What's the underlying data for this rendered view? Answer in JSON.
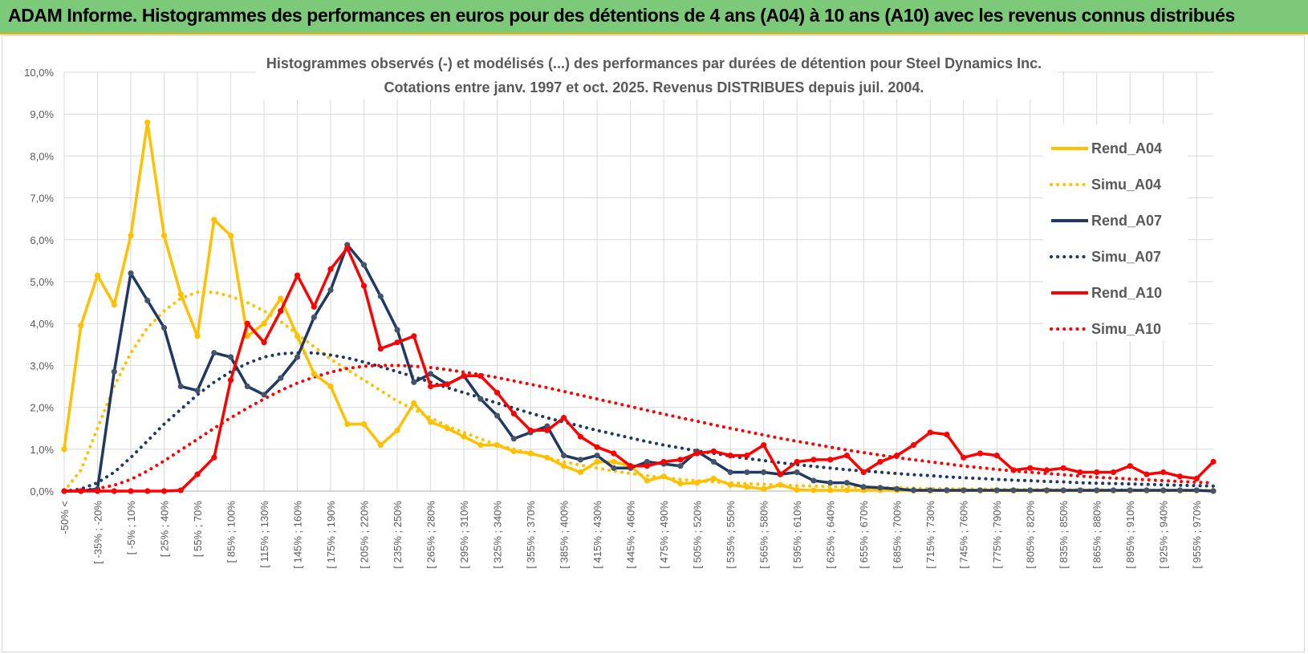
{
  "banner": {
    "title": "ADAM Informe. Histogrammes des performances en euros pour des détentions de 4 ans (A04) à 10 ans (A10) avec les revenus connus distribués"
  },
  "chart_data": {
    "type": "line",
    "title": "Histogrammes observés (-) et modélisés (...) des performances par durées de détention pour Steel Dynamics Inc.",
    "subtitle": "Cotations entre janv. 1997 et oct. 2025.  Revenus DISTRIBUES depuis juil. 2004.",
    "xlabel": "",
    "ylabel": "",
    "ylim": [
      0,
      10
    ],
    "y_ticks": [
      "0,0%",
      "1,0%",
      "2,0%",
      "3,0%",
      "4,0%",
      "5,0%",
      "6,0%",
      "7,0%",
      "8,0%",
      "9,0%",
      "10,0%"
    ],
    "x_tick_labels": [
      "-50% <",
      "[ -35% ; -20%",
      "[ -5% ; 10%",
      "[ 25% ; 40%",
      "[ 55% ; 70%",
      "[ 85% ; 100%",
      "[ 115% ; 130%",
      "[ 145% ; 160%",
      "[ 175% ; 190%",
      "[ 205% ; 220%",
      "[ 235% ; 250%",
      "[ 265% ; 280%",
      "[ 295% ; 310%",
      "[ 325% ; 340%",
      "[ 355% ; 370%",
      "[ 385% ; 400%",
      "[ 415% ; 430%",
      "[ 445% ; 460%",
      "[ 475% ; 490%",
      "[ 505% ; 520%",
      "[ 535% ; 550%",
      "[ 565% ; 580%",
      "[ 595% ; 610%",
      "[ 625% ; 640%",
      "[ 655% ; 670%",
      "[ 685% ; 700%",
      "[ 715% ; 730%",
      "[ 745% ; 760%",
      "[ 775% ; 790%",
      "[ 805% ; 820%",
      "[ 835% ; 850%",
      "[ 865% ; 880%",
      "[ 895% ; 910%",
      "[ 925% ; 940%",
      "[ 955% ; 970%"
    ],
    "legend_position": "right",
    "series": [
      {
        "name": "Rend_A04",
        "style": "solid",
        "color": "#ffc000",
        "values": [
          1.0,
          3.95,
          5.15,
          4.45,
          6.1,
          8.8,
          6.1,
          4.7,
          3.7,
          6.48,
          6.1,
          3.7,
          4.0,
          4.6,
          3.7,
          2.8,
          2.5,
          1.6,
          1.6,
          1.1,
          1.45,
          2.1,
          1.65,
          1.5,
          1.3,
          1.1,
          1.1,
          0.95,
          0.9,
          0.8,
          0.6,
          0.45,
          0.7,
          0.7,
          0.6,
          0.25,
          0.35,
          0.18,
          0.2,
          0.3,
          0.15,
          0.1,
          0.05,
          0.15,
          0.03,
          0.02,
          0.02,
          0.02,
          0.02,
          0.02,
          0.02,
          0.01,
          0.01,
          0.01,
          0.01,
          0.01,
          0.01,
          0.01,
          0.01,
          0.01,
          0.01,
          0.01,
          0.01,
          0.01,
          0.01,
          0.01,
          0.01,
          0.01,
          0.01,
          0.01
        ]
      },
      {
        "name": "Simu_A04",
        "style": "dotted",
        "color": "#ffc000",
        "values": [
          0.0,
          0.5,
          1.5,
          2.5,
          3.3,
          3.9,
          4.3,
          4.6,
          4.75,
          4.75,
          4.65,
          4.5,
          4.3,
          4.05,
          3.75,
          3.45,
          3.15,
          2.9,
          2.65,
          2.4,
          2.15,
          1.95,
          1.75,
          1.55,
          1.4,
          1.25,
          1.1,
          1.0,
          0.9,
          0.8,
          0.7,
          0.62,
          0.55,
          0.48,
          0.42,
          0.37,
          0.32,
          0.28,
          0.25,
          0.22,
          0.2,
          0.18,
          0.16,
          0.14,
          0.13,
          0.12,
          0.11,
          0.1,
          0.09,
          0.08,
          0.08,
          0.07,
          0.06,
          0.06,
          0.05,
          0.05,
          0.05,
          0.04,
          0.04,
          0.04,
          0.03,
          0.03,
          0.03,
          0.03,
          0.03,
          0.02,
          0.02,
          0.02,
          0.02,
          0.02
        ]
      },
      {
        "name": "Rend_A07",
        "style": "solid",
        "color": "#1f3864",
        "values": [
          0.0,
          0.0,
          0.05,
          2.85,
          5.2,
          4.55,
          3.9,
          2.5,
          2.4,
          3.3,
          3.2,
          2.5,
          2.3,
          2.7,
          3.2,
          4.15,
          4.8,
          5.88,
          5.4,
          4.65,
          3.85,
          2.6,
          2.8,
          2.55,
          2.75,
          2.2,
          1.8,
          1.25,
          1.4,
          1.55,
          0.85,
          0.75,
          0.85,
          0.55,
          0.55,
          0.7,
          0.65,
          0.6,
          0.95,
          0.7,
          0.45,
          0.45,
          0.45,
          0.4,
          0.45,
          0.25,
          0.2,
          0.2,
          0.1,
          0.08,
          0.05,
          0.02,
          0.02,
          0.02,
          0.02,
          0.02,
          0.02,
          0.02,
          0.02,
          0.02,
          0.02,
          0.02,
          0.02,
          0.02,
          0.02,
          0.02,
          0.02,
          0.02,
          0.02,
          0.0
        ]
      },
      {
        "name": "Simu_A07",
        "style": "dotted",
        "color": "#1f3864",
        "values": [
          0.0,
          0.05,
          0.2,
          0.45,
          0.8,
          1.2,
          1.6,
          1.95,
          2.3,
          2.6,
          2.85,
          3.05,
          3.2,
          3.28,
          3.3,
          3.3,
          3.25,
          3.18,
          3.08,
          2.97,
          2.85,
          2.73,
          2.6,
          2.47,
          2.35,
          2.23,
          2.1,
          1.98,
          1.86,
          1.75,
          1.65,
          1.55,
          1.45,
          1.36,
          1.27,
          1.18,
          1.1,
          1.03,
          0.96,
          0.9,
          0.84,
          0.78,
          0.73,
          0.68,
          0.63,
          0.59,
          0.55,
          0.51,
          0.48,
          0.45,
          0.42,
          0.39,
          0.37,
          0.34,
          0.32,
          0.3,
          0.28,
          0.26,
          0.25,
          0.23,
          0.22,
          0.2,
          0.19,
          0.18,
          0.17,
          0.16,
          0.15,
          0.14,
          0.13,
          0.12
        ]
      },
      {
        "name": "Rend_A10",
        "style": "solid",
        "color": "#ff0000",
        "values": [
          0.0,
          0.0,
          0.0,
          0.0,
          0.0,
          0.0,
          0.0,
          0.02,
          0.4,
          0.8,
          2.65,
          4.0,
          3.55,
          4.3,
          5.15,
          4.4,
          5.3,
          5.8,
          4.9,
          3.4,
          3.55,
          3.7,
          2.5,
          2.55,
          2.75,
          2.75,
          2.35,
          1.85,
          1.45,
          1.45,
          1.75,
          1.3,
          1.05,
          0.9,
          0.6,
          0.6,
          0.7,
          0.75,
          0.9,
          0.95,
          0.85,
          0.85,
          1.1,
          0.4,
          0.7,
          0.75,
          0.75,
          0.85,
          0.45,
          0.7,
          0.85,
          1.1,
          1.4,
          1.35,
          0.8,
          0.9,
          0.85,
          0.5,
          0.55,
          0.5,
          0.55,
          0.45,
          0.45,
          0.45,
          0.6,
          0.4,
          0.45,
          0.35,
          0.3,
          0.7
        ]
      },
      {
        "name": "Simu_A10",
        "style": "dotted",
        "color": "#ff0000",
        "values": [
          0.0,
          0.02,
          0.06,
          0.14,
          0.28,
          0.48,
          0.72,
          0.98,
          1.24,
          1.5,
          1.75,
          1.98,
          2.2,
          2.4,
          2.58,
          2.72,
          2.84,
          2.93,
          2.98,
          3.0,
          3.0,
          2.98,
          2.95,
          2.9,
          2.84,
          2.78,
          2.71,
          2.63,
          2.55,
          2.47,
          2.38,
          2.29,
          2.2,
          2.11,
          2.02,
          1.93,
          1.84,
          1.75,
          1.67,
          1.58,
          1.5,
          1.42,
          1.34,
          1.26,
          1.19,
          1.12,
          1.05,
          0.98,
          0.92,
          0.86,
          0.8,
          0.75,
          0.7,
          0.65,
          0.6,
          0.56,
          0.52,
          0.48,
          0.45,
          0.42,
          0.39,
          0.36,
          0.33,
          0.31,
          0.29,
          0.27,
          0.25,
          0.23,
          0.21,
          0.2
        ]
      }
    ]
  }
}
